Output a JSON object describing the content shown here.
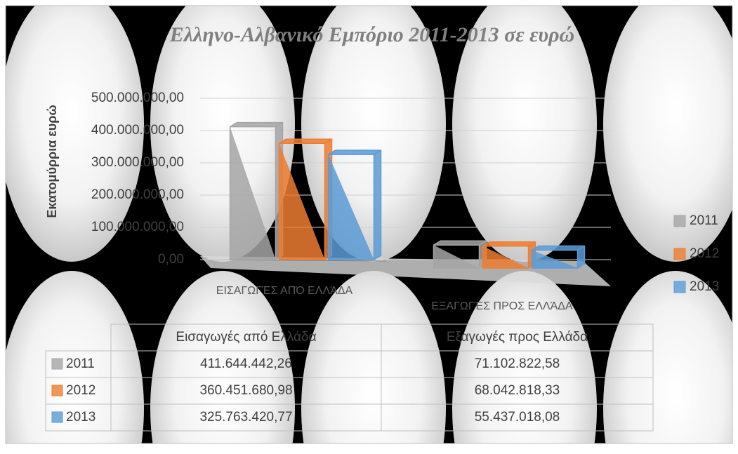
{
  "chart_data": {
    "type": "bar",
    "title": "Ελληνο-Αλβανικό Εμπόριο 2011-2013 σε ευρώ",
    "y_label": "Εκατομύρρια ευρώ",
    "categories": [
      "ΕΙΣΑΓΩΓΈΣ ΑΠΌ ΕΛΛΆΔΑ",
      "ΕΞΑΓΩΓΈΣ ΠΡΟΣ ΕΛΛΆΔΑ"
    ],
    "series": [
      {
        "name": "2011",
        "color": "#a5a5a5",
        "values": [
          411644442.26,
          71102822.58
        ],
        "value_labels": [
          "411.644.442,26",
          "71.102.822,58"
        ]
      },
      {
        "name": "2012",
        "color": "#ed7d31",
        "values": [
          360451680.98,
          68042818.33
        ],
        "value_labels": [
          "360.451.680,98",
          "68.042.818,33"
        ]
      },
      {
        "name": "2013",
        "color": "#5b9bd5",
        "values": [
          325763420.77,
          55437018.08
        ],
        "value_labels": [
          "325.763.420,77",
          "55.437.018,08"
        ]
      }
    ],
    "ylim": [
      0,
      500000000
    ],
    "yticks": [
      {
        "value": 0,
        "label": "0,00"
      },
      {
        "value": 100000000,
        "label": "100.000.000,00"
      },
      {
        "value": 200000000,
        "label": "200.000.000,00"
      },
      {
        "value": 300000000,
        "label": "300.000.000,00"
      },
      {
        "value": 400000000,
        "label": "400.000.000,00"
      },
      {
        "value": 500000000,
        "label": "500.000.000,00"
      }
    ],
    "grid": true,
    "legend": "right",
    "table_headers": [
      "Εισαγωγές από Ελλάδα",
      "Εξαγωγές προς Ελλάδα"
    ]
  }
}
